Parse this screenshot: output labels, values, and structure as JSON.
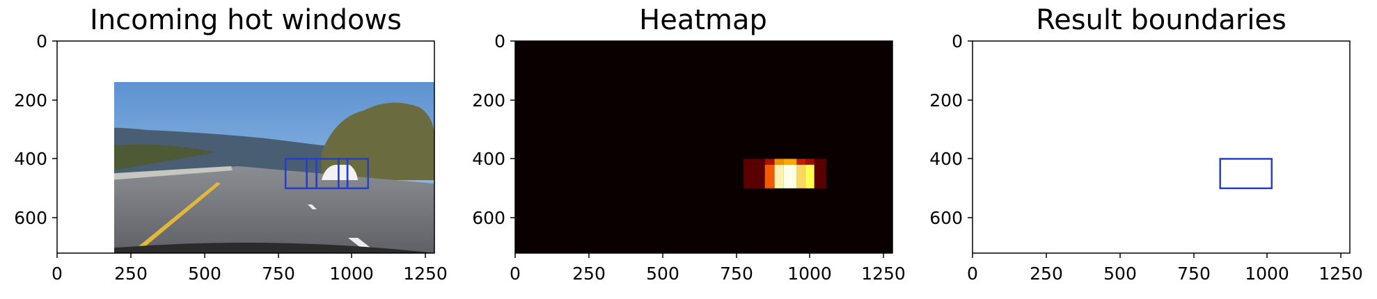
{
  "figure": {
    "panels": [
      {
        "id": "hot-windows",
        "title": "Incoming hot windows",
        "kind": "photo",
        "boxes": [
          {
            "x0": 775,
            "x1": 847,
            "y0": 400,
            "y1": 500
          },
          {
            "x0": 847,
            "x1": 880,
            "y0": 400,
            "y1": 500
          },
          {
            "x0": 880,
            "x1": 955,
            "y0": 400,
            "y1": 500
          },
          {
            "x0": 955,
            "x1": 985,
            "y0": 400,
            "y1": 500
          },
          {
            "x0": 985,
            "x1": 1055,
            "y0": 400,
            "y1": 500
          }
        ],
        "box_color": "#1f3de0"
      },
      {
        "id": "heatmap",
        "title": "Heatmap",
        "kind": "heatmap",
        "background": "#0b0000"
      },
      {
        "id": "result",
        "title": "Result boundaries",
        "kind": "photo",
        "boxes": [
          {
            "x0": 840,
            "x1": 1015,
            "y0": 400,
            "y1": 500
          }
        ],
        "box_color": "#1f3de0"
      }
    ],
    "x_axis": {
      "range": [
        0,
        1280
      ],
      "ticks": [
        "0",
        "250",
        "500",
        "750",
        "1000",
        "1250"
      ],
      "tick_values": [
        0,
        250,
        500,
        750,
        1000,
        1250
      ]
    },
    "y_axis": {
      "range": [
        0,
        720
      ],
      "inverted": true,
      "ticks": [
        "0",
        "200",
        "400",
        "600"
      ],
      "tick_values": [
        0,
        200,
        400,
        600
      ]
    }
  },
  "chart_data": {
    "type": "heatmap",
    "title": "Heatmap",
    "x_range": [
      0,
      1280
    ],
    "y_range": [
      720,
      0
    ],
    "y_axis_inverted": true,
    "cells": [
      {
        "x0": 775,
        "x1": 847,
        "y0": 400,
        "y1": 420,
        "color": "#5a0000"
      },
      {
        "x0": 847,
        "x1": 880,
        "y0": 400,
        "y1": 420,
        "color": "#a81000"
      },
      {
        "x0": 880,
        "x1": 910,
        "y0": 400,
        "y1": 420,
        "color": "#f09000"
      },
      {
        "x0": 910,
        "x1": 955,
        "y0": 400,
        "y1": 420,
        "color": "#f8a800"
      },
      {
        "x0": 955,
        "x1": 985,
        "y0": 400,
        "y1": 420,
        "color": "#c02000"
      },
      {
        "x0": 985,
        "x1": 1015,
        "y0": 400,
        "y1": 420,
        "color": "#a01000"
      },
      {
        "x0": 1015,
        "x1": 1055,
        "y0": 400,
        "y1": 420,
        "color": "#5a0000"
      },
      {
        "x0": 775,
        "x1": 847,
        "y0": 420,
        "y1": 500,
        "color": "#5a0000"
      },
      {
        "x0": 847,
        "x1": 880,
        "y0": 420,
        "y1": 500,
        "color": "#f05a00"
      },
      {
        "x0": 880,
        "x1": 910,
        "y0": 420,
        "y1": 500,
        "color": "#fff2b0"
      },
      {
        "x0": 910,
        "x1": 955,
        "y0": 420,
        "y1": 500,
        "color": "#ffffe8"
      },
      {
        "x0": 955,
        "x1": 985,
        "y0": 420,
        "y1": 500,
        "color": "#f8d860"
      },
      {
        "x0": 985,
        "x1": 1015,
        "y0": 420,
        "y1": 500,
        "color": "#ffff50"
      },
      {
        "x0": 1015,
        "x1": 1055,
        "y0": 420,
        "y1": 500,
        "color": "#5a0000"
      }
    ]
  }
}
